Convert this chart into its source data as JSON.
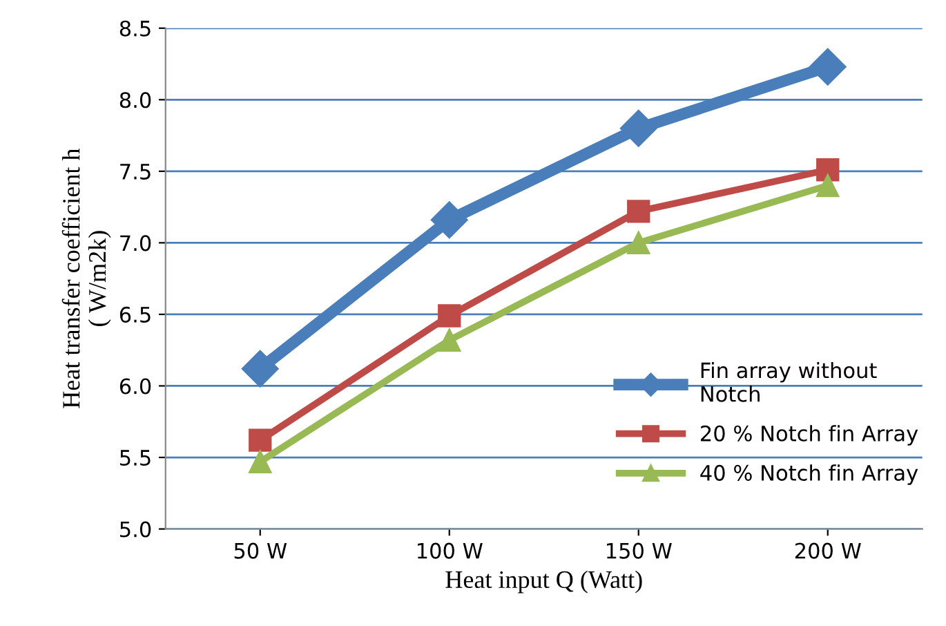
{
  "chart_data": {
    "type": "line",
    "xlabel": "Heat input Q (Watt)",
    "ylabel": "Heat transfer coefficient h\n( W/m2k)",
    "categories": [
      "50 W",
      "100 W",
      "150 W",
      "200 W"
    ],
    "series": [
      {
        "name": "Fin array without\nNotch",
        "color": "#4a7ebb",
        "marker": "diamond",
        "values": [
          6.12,
          7.16,
          7.8,
          8.23
        ]
      },
      {
        "name": "20 % Notch fin Array",
        "color": "#be4b48",
        "marker": "square",
        "values": [
          5.62,
          6.49,
          7.22,
          7.51
        ]
      },
      {
        "name": "40 % Notch fin Array",
        "color": "#98b954",
        "marker": "triangle",
        "values": [
          5.47,
          6.32,
          7.0,
          7.4
        ]
      }
    ],
    "ylim": [
      5.0,
      8.5
    ],
    "yticks": [
      {
        "value": 5.0,
        "label": "5.0"
      },
      {
        "value": 5.5,
        "label": "5.5"
      },
      {
        "value": 6.0,
        "label": "6.0"
      },
      {
        "value": 6.5,
        "label": "6.5"
      },
      {
        "value": 7.0,
        "label": "7.0"
      },
      {
        "value": 7.5,
        "label": "7.5"
      },
      {
        "value": 8.0,
        "label": "8.0"
      },
      {
        "value": 8.5,
        "label": "8.5"
      }
    ],
    "grid": "y",
    "legend": "right",
    "line_style": "solid"
  }
}
